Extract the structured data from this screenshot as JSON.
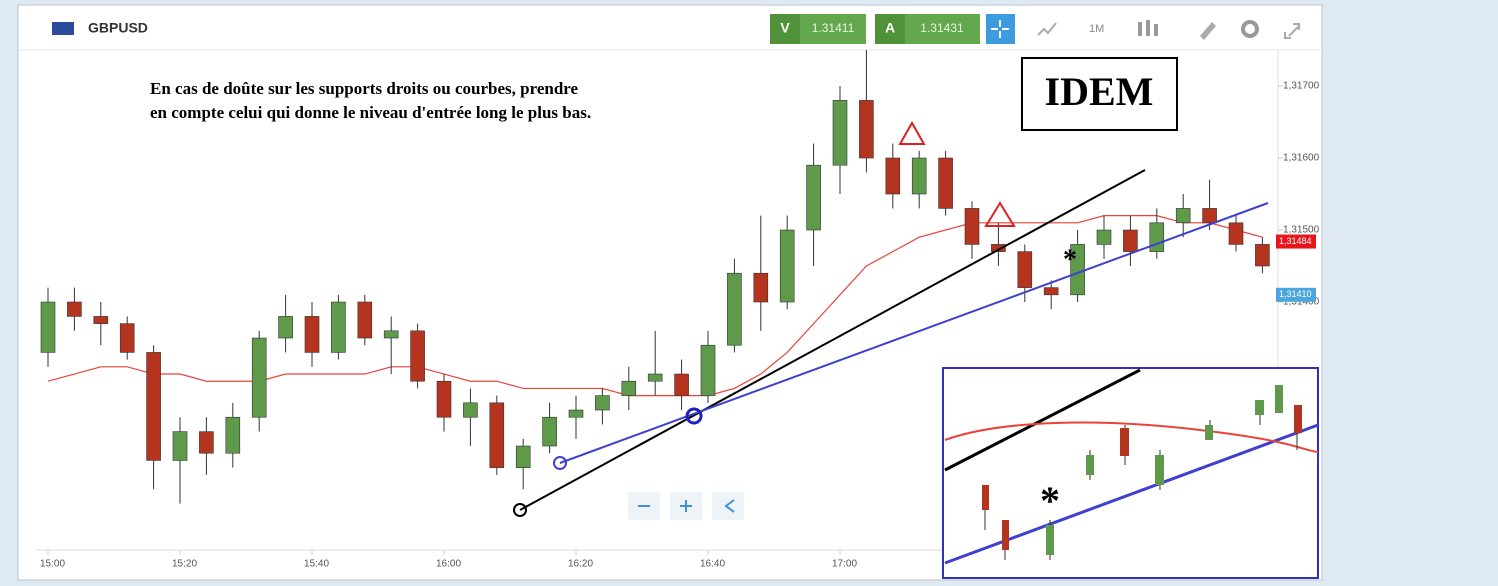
{
  "header": {
    "symbol": "GBPUSD",
    "bid_tag": "V",
    "bid": "1.31411",
    "ask_tag": "A",
    "ask": "1.31431",
    "timeframe": "1M"
  },
  "annotations": {
    "note_line1": "En cas de doûte sur les supports droits ou courbes, prendre",
    "note_line2": "en compte celui qui donne le niveau d'entrée long le plus bas.",
    "idem": "IDEM"
  },
  "chart_data": {
    "type": "candlestick",
    "categories": [
      "15:00",
      null,
      null,
      null,
      null,
      "15:20",
      null,
      null,
      null,
      null,
      "15:40",
      null,
      null,
      null,
      null,
      "16:00",
      null,
      null,
      null,
      null,
      "16:20",
      null,
      null,
      null,
      null,
      "16:40",
      null,
      null,
      null,
      null,
      "17:00",
      null,
      null,
      null,
      null,
      null,
      null,
      null,
      null,
      null,
      null,
      null,
      null,
      null,
      null,
      null,
      null
    ],
    "open": [
      1.3133,
      1.314,
      1.3138,
      1.3137,
      1.3133,
      1.3118,
      1.3122,
      1.3119,
      1.3124,
      1.3135,
      1.3138,
      1.3133,
      1.314,
      1.3135,
      1.3136,
      1.3129,
      1.3124,
      1.3126,
      1.3117,
      1.312,
      1.3124,
      1.3125,
      1.3127,
      1.3129,
      1.313,
      1.3127,
      1.3134,
      1.3144,
      1.314,
      1.315,
      1.3159,
      1.3168,
      1.316,
      1.3155,
      1.316,
      1.3153,
      1.3148,
      1.3147,
      1.3142,
      1.3141,
      1.3148,
      1.315,
      1.3147,
      1.3151,
      1.3153,
      1.3151,
      1.3148
    ],
    "high": [
      1.3142,
      1.3142,
      1.314,
      1.3138,
      1.3134,
      1.3124,
      1.3124,
      1.3126,
      1.3136,
      1.3141,
      1.314,
      1.3141,
      1.3141,
      1.3138,
      1.3137,
      1.313,
      1.3128,
      1.3127,
      1.3121,
      1.3126,
      1.3127,
      1.3128,
      1.3131,
      1.3136,
      1.3132,
      1.3136,
      1.3146,
      1.3152,
      1.3152,
      1.3162,
      1.317,
      1.3175,
      1.3162,
      1.3161,
      1.3161,
      1.3154,
      1.3151,
      1.3148,
      1.3143,
      1.315,
      1.3152,
      1.3152,
      1.3153,
      1.3155,
      1.3157,
      1.3152,
      1.3149
    ],
    "low": [
      1.3131,
      1.3136,
      1.3134,
      1.3132,
      1.3114,
      1.3112,
      1.3116,
      1.3117,
      1.3122,
      1.3133,
      1.3131,
      1.3132,
      1.3134,
      1.313,
      1.3128,
      1.3122,
      1.312,
      1.3116,
      1.3114,
      1.3119,
      1.3121,
      1.3123,
      1.3125,
      1.3127,
      1.3125,
      1.3126,
      1.3133,
      1.3136,
      1.3139,
      1.3145,
      1.3155,
      1.3158,
      1.3153,
      1.3153,
      1.3152,
      1.3146,
      1.3145,
      1.314,
      1.3139,
      1.314,
      1.3146,
      1.3145,
      1.3146,
      1.3149,
      1.315,
      1.3147,
      1.3144
    ],
    "close": [
      1.314,
      1.3138,
      1.3137,
      1.3133,
      1.3118,
      1.3122,
      1.3119,
      1.3124,
      1.3135,
      1.3138,
      1.3133,
      1.314,
      1.3135,
      1.3136,
      1.3129,
      1.3124,
      1.3126,
      1.3117,
      1.312,
      1.3124,
      1.3125,
      1.3127,
      1.3129,
      1.313,
      1.3127,
      1.3134,
      1.3144,
      1.314,
      1.315,
      1.3159,
      1.3168,
      1.316,
      1.3155,
      1.316,
      1.3153,
      1.3148,
      1.3147,
      1.3142,
      1.3141,
      1.3148,
      1.315,
      1.3147,
      1.3151,
      1.3153,
      1.3151,
      1.3148,
      1.3145
    ],
    "moving_average": {
      "color": "#e8443a",
      "values": [
        1.3129,
        1.313,
        1.3131,
        1.3131,
        1.313,
        1.313,
        1.3129,
        1.3129,
        1.3129,
        1.313,
        1.313,
        1.313,
        1.313,
        1.3131,
        1.3131,
        1.313,
        1.3129,
        1.3129,
        1.3128,
        1.3128,
        1.3128,
        1.3128,
        1.3127,
        1.3127,
        1.3127,
        1.3127,
        1.3128,
        1.313,
        1.3133,
        1.3137,
        1.3141,
        1.3145,
        1.3147,
        1.3149,
        1.315,
        1.3151,
        1.3151,
        1.3151,
        1.3151,
        1.3151,
        1.3152,
        1.3152,
        1.3152,
        1.3151,
        1.3151,
        1.315,
        1.3149
      ]
    },
    "up_color": "#5f9a4b",
    "down_color": "#b5341f",
    "ylim": [
      1.310556,
      1.3175
    ],
    "yticks": [
      {
        "value": 1.314,
        "label": "1,31400"
      },
      {
        "value": 1.315,
        "label": "1,31500"
      },
      {
        "value": 1.316,
        "label": "1,31600"
      },
      {
        "value": 1.317,
        "label": "1,31700"
      }
    ],
    "last_price": {
      "value": 1.31484,
      "label": "1,31484",
      "color": "#e8151b"
    },
    "bid_price": {
      "value": 1.3141,
      "label": "1,31410",
      "color": "#4aa6dc"
    },
    "grid": false
  }
}
